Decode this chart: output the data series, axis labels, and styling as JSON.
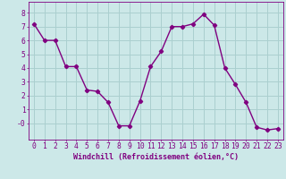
{
  "x": [
    0,
    1,
    2,
    3,
    4,
    5,
    6,
    7,
    8,
    9,
    10,
    11,
    12,
    13,
    14,
    15,
    16,
    17,
    18,
    19,
    20,
    21,
    22,
    23
  ],
  "y": [
    7.2,
    6.0,
    6.0,
    4.1,
    4.1,
    2.4,
    2.3,
    1.5,
    -0.2,
    -0.2,
    1.6,
    4.1,
    5.2,
    7.0,
    7.0,
    7.2,
    7.9,
    7.1,
    4.0,
    2.8,
    1.5,
    -0.3,
    -0.5,
    -0.4
  ],
  "line_color": "#800080",
  "marker": "D",
  "markersize": 2.2,
  "linewidth": 1.0,
  "bg_color": "#cce8e8",
  "grid_color": "#aacfcf",
  "xlabel": "Windchill (Refroidissement éolien,°C)",
  "xlim": [
    -0.5,
    23.5
  ],
  "ylim": [
    -1.2,
    8.8
  ],
  "yticks": [
    0,
    1,
    2,
    3,
    4,
    5,
    6,
    7,
    8
  ],
  "ytick_labels": [
    "-0",
    "1",
    "2",
    "3",
    "4",
    "5",
    "6",
    "7",
    "8"
  ],
  "xtick_labels": [
    "0",
    "1",
    "2",
    "3",
    "4",
    "5",
    "6",
    "7",
    "8",
    "9",
    "10",
    "11",
    "12",
    "13",
    "14",
    "15",
    "16",
    "17",
    "18",
    "19",
    "20",
    "21",
    "22",
    "23"
  ],
  "tick_color": "#800080",
  "label_color": "#800080",
  "label_fontsize": 6.0,
  "tick_fontsize": 5.8
}
